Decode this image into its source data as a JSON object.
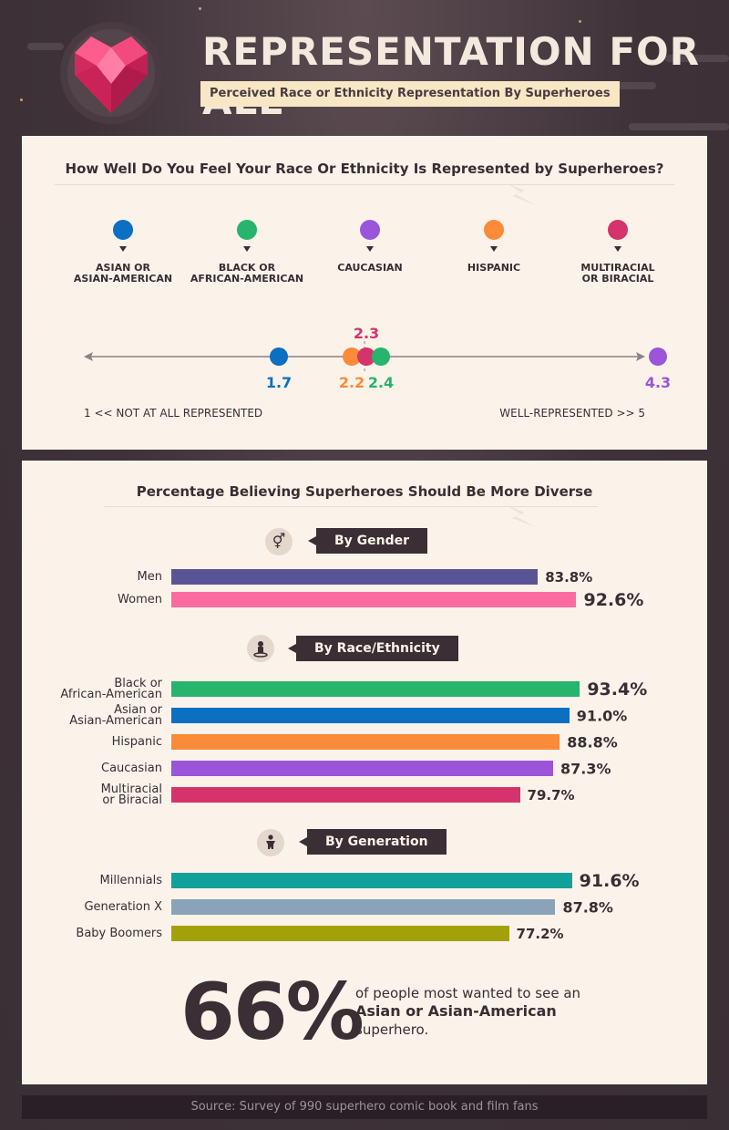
{
  "header": {
    "title": "REPRESENTATION FOR ALL",
    "subtitle": "Perceived Race or Ethnicity Representation By Superheroes"
  },
  "colors": {
    "asian": "#0b6fc2",
    "black": "#27b46d",
    "caucasian": "#9b55d9",
    "hispanic": "#fb8a39",
    "multiracial": "#d6326b",
    "men": "#5a5496",
    "women": "#fc6ba0",
    "millennials": "#12a09a",
    "genx": "#8aa3b8",
    "boomers": "#a3a10a",
    "panel_bg": "#fbf3ea",
    "dark": "#3b2e34"
  },
  "representation": {
    "heading": "How Well Do You Feel Your Race Or Ethnicity Is Represented by Superheroes?",
    "legend": [
      {
        "label": "ASIAN OR\nASIAN-AMERICAN",
        "color_key": "asian"
      },
      {
        "label": "BLACK OR\nAFRICAN-AMERICAN",
        "color_key": "black"
      },
      {
        "label": "CAUCASIAN",
        "color_key": "caucasian"
      },
      {
        "label": "HISPANIC",
        "color_key": "hispanic"
      },
      {
        "label": "MULTIRACIAL\nOR BIRACIAL",
        "color_key": "multiracial"
      }
    ],
    "scale_min_caption": "1 << NOT AT ALL REPRESENTED",
    "scale_max_caption": "WELL-REPRESENTED >> 5"
  },
  "diversity": {
    "heading": "Percentage Believing Superheroes Should Be More Diverse",
    "gender_tag": "By Gender",
    "race_tag": "By Race/Ethnicity",
    "generation_tag": "By Generation",
    "stat_value": "66%",
    "stat_text_before": "of people most wanted to see an",
    "stat_text_bold": "Asian or Asian-American",
    "stat_text_after": "superhero."
  },
  "chart_data": [
    {
      "type": "scatter",
      "title": "How Well Do You Feel Your Race Or Ethnicity Is Represented by Superheroes?",
      "xlim": [
        1,
        5
      ],
      "points": [
        {
          "name": "Asian or Asian-American",
          "value": 1.7,
          "label": "1.7",
          "color_key": "asian",
          "label_pos": "below"
        },
        {
          "name": "Hispanic",
          "value": 2.2,
          "label": "2.2",
          "color_key": "hispanic",
          "label_pos": "below"
        },
        {
          "name": "Multiracial or Biracial",
          "value": 2.3,
          "label": "2.3",
          "color_key": "multiracial",
          "label_pos": "above"
        },
        {
          "name": "Black or African-American",
          "value": 2.4,
          "label": "2.4",
          "color_key": "black",
          "label_pos": "below"
        },
        {
          "name": "Caucasian",
          "value": 4.3,
          "label": "4.3",
          "color_key": "caucasian",
          "label_pos": "below"
        }
      ]
    },
    {
      "type": "bar",
      "title": "By Gender",
      "unit": "%",
      "xlim": [
        0,
        100
      ],
      "bars": [
        {
          "label": "Men",
          "value": 83.8,
          "label_text": "83.8%",
          "color_key": "men"
        },
        {
          "label": "Women",
          "value": 92.6,
          "label_text": "92.6%",
          "color_key": "women"
        }
      ]
    },
    {
      "type": "bar",
      "title": "By Race/Ethnicity",
      "unit": "%",
      "xlim": [
        0,
        100
      ],
      "bars": [
        {
          "label": "Black or\nAfrican-American",
          "value": 93.4,
          "label_text": "93.4%",
          "color_key": "black"
        },
        {
          "label": "Asian or\nAsian-American",
          "value": 91.0,
          "label_text": "91.0%",
          "color_key": "asian"
        },
        {
          "label": "Hispanic",
          "value": 88.8,
          "label_text": "88.8%",
          "color_key": "hispanic"
        },
        {
          "label": "Caucasian",
          "value": 87.3,
          "label_text": "87.3%",
          "color_key": "caucasian"
        },
        {
          "label": "Multiracial\nor Biracial",
          "value": 79.7,
          "label_text": "79.7%",
          "color_key": "multiracial"
        }
      ]
    },
    {
      "type": "bar",
      "title": "By Generation",
      "unit": "%",
      "xlim": [
        0,
        100
      ],
      "bars": [
        {
          "label": "Millennials",
          "value": 91.6,
          "label_text": "91.6%",
          "color_key": "millennials"
        },
        {
          "label": "Generation X",
          "value": 87.8,
          "label_text": "87.8%",
          "color_key": "genx"
        },
        {
          "label": "Baby Boomers",
          "value": 77.2,
          "label_text": "77.2%",
          "color_key": "boomers"
        }
      ]
    }
  ],
  "footer": {
    "source": "Source: Survey of 990 superhero comic book and film fans"
  }
}
